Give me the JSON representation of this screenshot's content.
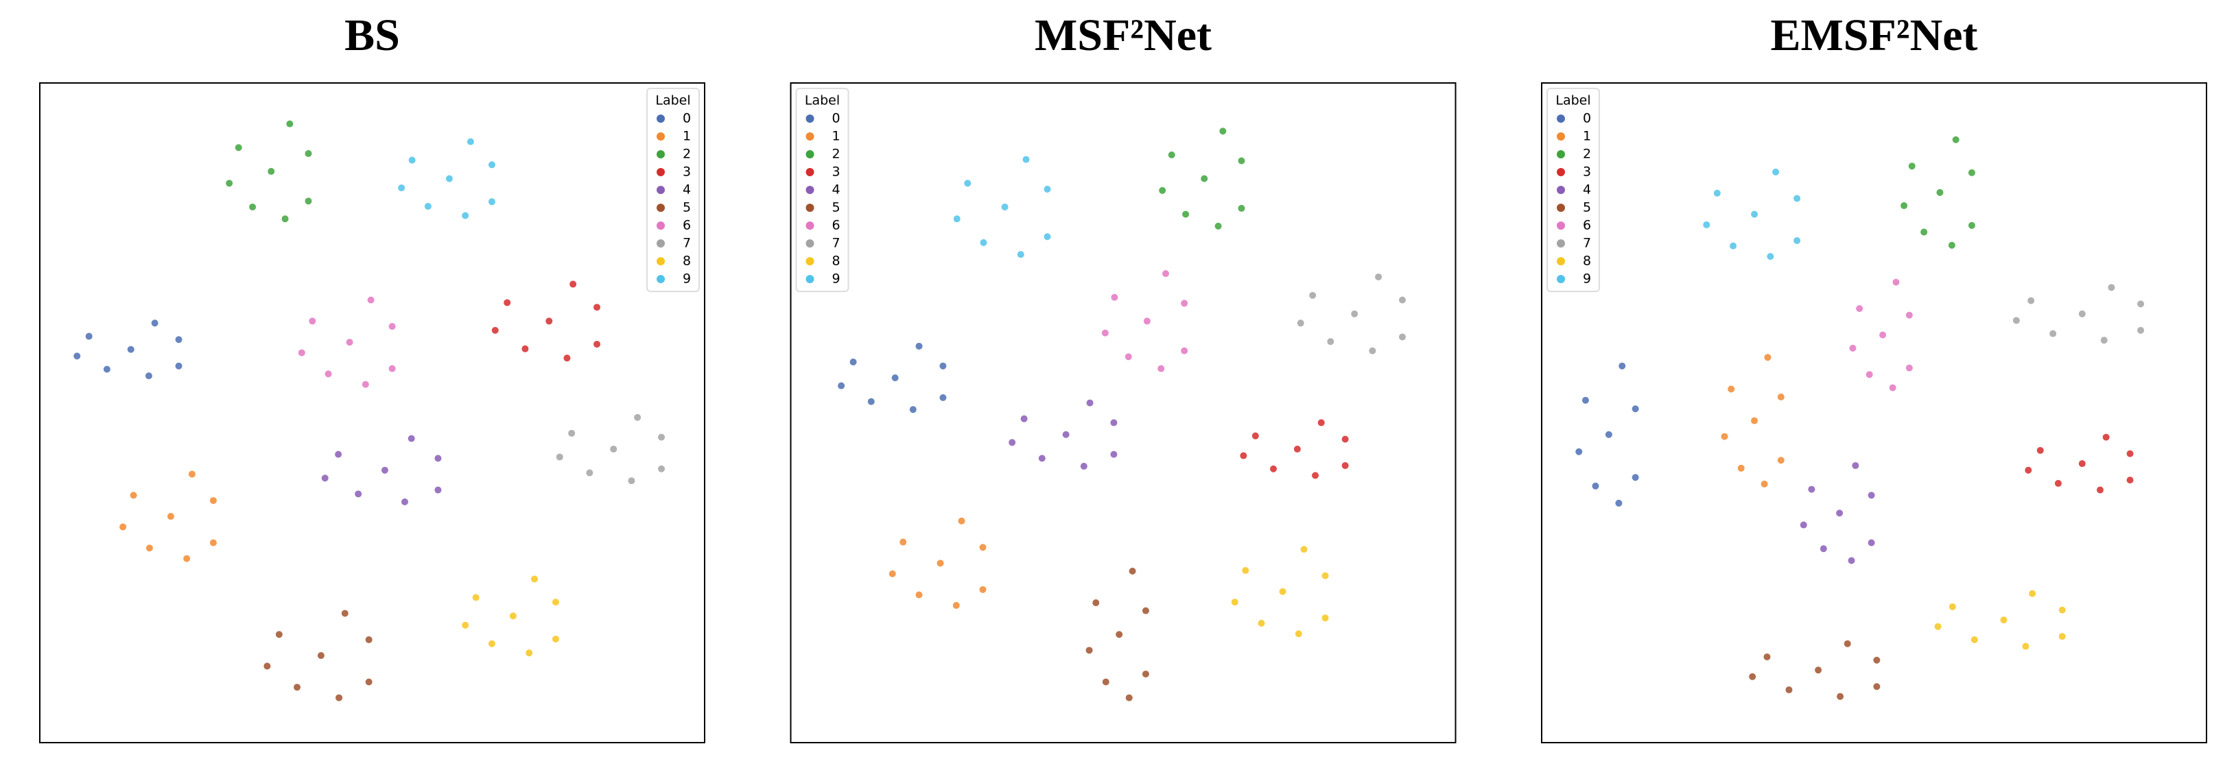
{
  "chart_data": [
    {
      "type": "scatter",
      "title": "BS",
      "legend_title": "Label",
      "legend": "upper right",
      "xlim": [
        0,
        100
      ],
      "ylim": [
        0,
        100
      ],
      "series": [
        {
          "name": "0",
          "color": "#4c6fb4",
          "x": [
            13.7,
            20.9,
            7.4,
            16.4,
            10.1,
            17.3,
            5.6,
            20.9
          ],
          "y": [
            59.6,
            61.1,
            61.6,
            55.6,
            56.6,
            63.6,
            58.6,
            57.1
          ]
        },
        {
          "name": "1",
          "color": "#f28a30",
          "x": [
            19.7,
            26.1,
            14.1,
            22.1,
            16.5,
            22.9,
            12.5,
            26.1
          ],
          "y": [
            34.3,
            36.7,
            37.5,
            27.9,
            29.5,
            40.7,
            32.7,
            30.3
          ]
        },
        {
          "name": "2",
          "color": "#3ea43c",
          "x": [
            34.8,
            40.4,
            29.9,
            36.9,
            32.0,
            37.6,
            28.5,
            40.4
          ],
          "y": [
            86.6,
            89.3,
            90.2,
            79.4,
            81.2,
            93.8,
            84.8,
            82.1
          ]
        },
        {
          "name": "3",
          "color": "#d62c2c",
          "x": [
            76.6,
            83.8,
            70.3,
            79.3,
            73.0,
            80.2,
            68.5,
            83.8
          ],
          "y": [
            63.9,
            66.0,
            66.7,
            58.3,
            59.7,
            69.5,
            62.5,
            60.4
          ]
        },
        {
          "name": "4",
          "color": "#8a5db6",
          "x": [
            51.9,
            59.9,
            44.9,
            54.9,
            47.9,
            55.9,
            42.9,
            59.9
          ],
          "y": [
            41.3,
            43.1,
            43.7,
            36.5,
            37.7,
            46.1,
            40.1,
            38.3
          ]
        },
        {
          "name": "5",
          "color": "#a0522d",
          "x": [
            42.3,
            49.5,
            36.0,
            45.0,
            38.7,
            45.9,
            34.2,
            49.5
          ],
          "y": [
            13.2,
            15.6,
            16.4,
            6.8,
            8.4,
            19.6,
            11.6,
            9.2
          ]
        },
        {
          "name": "6",
          "color": "#e377c2",
          "x": [
            46.6,
            53.0,
            41.0,
            49.0,
            43.4,
            49.8,
            39.4,
            53.0
          ],
          "y": [
            60.7,
            63.1,
            63.9,
            54.3,
            55.9,
            67.1,
            59.1,
            56.7
          ]
        },
        {
          "name": "7",
          "color": "#a3a3a3",
          "x": [
            86.3,
            93.5,
            80.0,
            89.0,
            82.7,
            89.9,
            78.2,
            93.5
          ],
          "y": [
            44.5,
            46.3,
            46.9,
            39.7,
            40.9,
            49.3,
            43.3,
            41.5
          ]
        },
        {
          "name": "8",
          "color": "#f7c520",
          "x": [
            71.2,
            77.6,
            65.6,
            73.6,
            68.0,
            74.4,
            64.0,
            77.6
          ],
          "y": [
            19.2,
            21.3,
            22.0,
            13.6,
            15.0,
            24.8,
            17.8,
            15.7
          ]
        },
        {
          "name": "9",
          "color": "#4fc3ea",
          "x": [
            61.6,
            68.0,
            56.0,
            64.0,
            58.4,
            64.8,
            54.4,
            68.0
          ],
          "y": [
            85.5,
            87.6,
            88.3,
            79.9,
            81.3,
            91.1,
            84.1,
            82.0
          ]
        }
      ]
    },
    {
      "type": "scatter",
      "title": "MSF²Net",
      "legend_title": "Label",
      "legend": "upper left",
      "xlim": [
        0,
        100
      ],
      "ylim": [
        0,
        100
      ],
      "series": [
        {
          "name": "0",
          "color": "#4c6fb4",
          "x": [
            15.7,
            22.9,
            9.4,
            18.4,
            12.1,
            19.3,
            7.6,
            22.9
          ],
          "y": [
            55.3,
            57.1,
            57.7,
            50.5,
            51.7,
            60.1,
            54.1,
            52.3
          ]
        },
        {
          "name": "1",
          "color": "#f28a30",
          "x": [
            22.5,
            28.9,
            16.9,
            24.9,
            19.3,
            25.7,
            15.3,
            28.9
          ],
          "y": [
            27.2,
            29.6,
            30.4,
            20.8,
            22.4,
            33.6,
            25.6,
            23.2
          ]
        },
        {
          "name": "2",
          "color": "#3ea43c",
          "x": [
            62.2,
            67.8,
            57.3,
            64.3,
            59.4,
            65.0,
            55.9,
            67.8
          ],
          "y": [
            85.5,
            88.2,
            89.1,
            78.3,
            80.1,
            92.7,
            83.7,
            81.0
          ]
        },
        {
          "name": "3",
          "color": "#d62c2c",
          "x": [
            76.2,
            83.4,
            69.9,
            78.9,
            72.6,
            79.8,
            68.1,
            83.4
          ],
          "y": [
            44.5,
            46.0,
            46.5,
            40.5,
            41.5,
            48.5,
            43.5,
            42.0
          ]
        },
        {
          "name": "4",
          "color": "#8a5db6",
          "x": [
            41.4,
            48.6,
            35.1,
            44.1,
            37.8,
            45.0,
            33.3,
            48.6
          ],
          "y": [
            46.7,
            48.5,
            49.1,
            41.9,
            43.1,
            51.5,
            45.5,
            43.7
          ]
        },
        {
          "name": "5",
          "color": "#a0522d",
          "x": [
            49.4,
            53.4,
            45.9,
            50.9,
            47.4,
            51.4,
            44.9,
            53.4
          ],
          "y": [
            16.4,
            20.0,
            21.2,
            6.8,
            9.2,
            26.0,
            14.0,
            10.4
          ]
        },
        {
          "name": "6",
          "color": "#e377c2",
          "x": [
            53.6,
            59.2,
            48.7,
            55.7,
            50.8,
            56.4,
            47.3,
            59.2
          ],
          "y": [
            63.9,
            66.6,
            67.5,
            56.7,
            58.5,
            71.1,
            62.1,
            59.4
          ]
        },
        {
          "name": "7",
          "color": "#a3a3a3",
          "x": [
            84.8,
            92.0,
            78.5,
            87.5,
            81.2,
            88.4,
            76.7,
            92.0
          ],
          "y": [
            65.0,
            67.1,
            67.8,
            59.4,
            60.8,
            70.6,
            63.6,
            61.5
          ]
        },
        {
          "name": "8",
          "color": "#f7c520",
          "x": [
            74.0,
            80.4,
            68.4,
            76.4,
            70.8,
            77.2,
            66.8,
            80.4
          ],
          "y": [
            22.9,
            25.3,
            26.1,
            16.5,
            18.1,
            29.3,
            21.3,
            18.9
          ]
        },
        {
          "name": "9",
          "color": "#4fc3ea",
          "x": [
            32.2,
            38.6,
            26.6,
            34.6,
            29.0,
            35.4,
            25.0,
            38.6
          ],
          "y": [
            81.2,
            83.9,
            84.8,
            74.0,
            75.8,
            88.4,
            79.4,
            76.7
          ]
        }
      ]
    },
    {
      "type": "scatter",
      "title": "EMSF²Net",
      "legend_title": "Label",
      "legend": "upper left",
      "xlim": [
        0,
        100
      ],
      "ylim": [
        0,
        100
      ],
      "series": [
        {
          "name": "0",
          "color": "#4c6fb4",
          "x": [
            10.1,
            14.1,
            6.6,
            11.6,
            8.1,
            12.1,
            5.6,
            14.1
          ],
          "y": [
            46.7,
            50.6,
            51.9,
            36.3,
            38.9,
            57.1,
            44.1,
            40.2
          ]
        },
        {
          "name": "1",
          "color": "#f28a30",
          "x": [
            32.0,
            36.0,
            28.5,
            33.5,
            30.0,
            34.0,
            27.5,
            36.0
          ],
          "y": [
            48.8,
            52.4,
            53.6,
            39.2,
            41.6,
            58.4,
            46.4,
            42.8
          ]
        },
        {
          "name": "2",
          "color": "#3ea43c",
          "x": [
            59.9,
            64.7,
            55.7,
            61.7,
            57.5,
            62.3,
            54.5,
            64.7
          ],
          "y": [
            83.4,
            86.4,
            87.4,
            75.4,
            77.4,
            91.4,
            81.4,
            78.4
          ]
        },
        {
          "name": "3",
          "color": "#d62c2c",
          "x": [
            81.3,
            88.5,
            75.0,
            84.0,
            77.7,
            84.9,
            73.2,
            88.5
          ],
          "y": [
            42.3,
            43.8,
            44.3,
            38.3,
            39.3,
            46.3,
            41.3,
            39.8
          ]
        },
        {
          "name": "4",
          "color": "#8a5db6",
          "x": [
            44.8,
            49.6,
            40.6,
            46.6,
            42.4,
            47.2,
            39.4,
            49.6
          ],
          "y": [
            34.8,
            37.5,
            38.4,
            27.6,
            29.4,
            42.0,
            33.0,
            30.3
          ]
        },
        {
          "name": "5",
          "color": "#a0522d",
          "x": [
            41.6,
            50.4,
            33.9,
            44.9,
            37.2,
            46.0,
            31.7,
            50.4
          ],
          "y": [
            11.0,
            12.5,
            13.0,
            7.0,
            8.0,
            15.0,
            10.0,
            8.5
          ]
        },
        {
          "name": "6",
          "color": "#e377c2",
          "x": [
            51.3,
            55.3,
            47.8,
            52.8,
            49.3,
            53.3,
            46.8,
            55.3
          ],
          "y": [
            61.8,
            64.8,
            65.8,
            53.8,
            55.8,
            69.8,
            59.8,
            56.8
          ]
        },
        {
          "name": "7",
          "color": "#a3a3a3",
          "x": [
            81.3,
            90.1,
            73.6,
            84.6,
            76.9,
            85.7,
            71.4,
            90.1
          ],
          "y": [
            65.0,
            66.5,
            67.0,
            61.0,
            62.0,
            69.0,
            64.0,
            62.5
          ]
        },
        {
          "name": "8",
          "color": "#f7c520",
          "x": [
            69.5,
            78.3,
            61.8,
            72.8,
            65.1,
            73.8,
            59.6,
            78.3
          ],
          "y": [
            18.6,
            20.1,
            20.6,
            14.6,
            15.6,
            22.6,
            17.6,
            16.1
          ]
        },
        {
          "name": "9",
          "color": "#4fc3ea",
          "x": [
            32.0,
            38.4,
            26.4,
            34.4,
            28.8,
            35.2,
            24.8,
            38.4
          ],
          "y": [
            80.1,
            82.5,
            83.3,
            73.7,
            75.3,
            86.5,
            78.5,
            76.1
          ]
        }
      ]
    }
  ]
}
